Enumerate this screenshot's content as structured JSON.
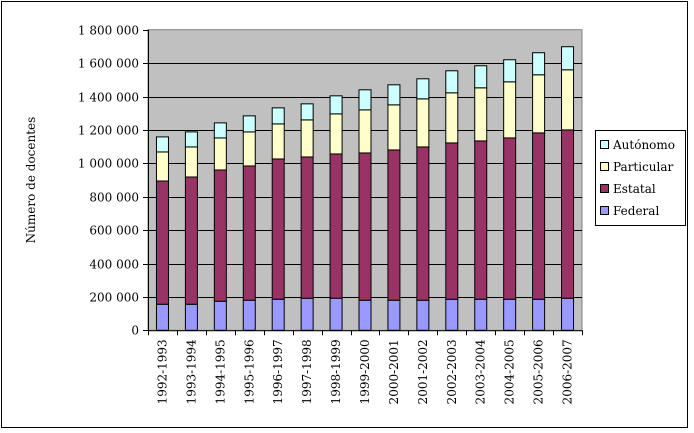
{
  "chart_data": {
    "type": "bar",
    "stacked": true,
    "title": "",
    "xlabel": "",
    "ylabel": "Número de docentes",
    "ylim": [
      0,
      1800000
    ],
    "yticks": [
      0,
      200000,
      400000,
      600000,
      800000,
      1000000,
      1200000,
      1400000,
      1600000,
      1800000
    ],
    "ytick_labels": [
      "0",
      "200 000",
      "400 000",
      "600 000",
      "800 000",
      "1 000 000",
      "1 200 000",
      "1 400 000",
      "1 600 000",
      "1 800 000"
    ],
    "grid": true,
    "legend_position": "right",
    "categories": [
      "1992-1993",
      "1993-1994",
      "1994-1995",
      "1995-1996",
      "1996-1997",
      "1997-1998",
      "1998-1999",
      "1999-2000",
      "2000-2001",
      "2001-2002",
      "2002-2003",
      "2003-2004",
      "2004-2005",
      "2005-2006",
      "2006-2007"
    ],
    "series": [
      {
        "name": "Federal",
        "color": "#9999ff",
        "values": [
          156000,
          156000,
          174000,
          180000,
          186000,
          192000,
          192000,
          180000,
          180000,
          180000,
          186000,
          186000,
          186000,
          186000,
          192000
        ]
      },
      {
        "name": "Estatal",
        "color": "#993366",
        "values": [
          738000,
          762000,
          786000,
          804000,
          840000,
          846000,
          864000,
          882000,
          900000,
          918000,
          936000,
          948000,
          966000,
          996000,
          1008000
        ]
      },
      {
        "name": "Particular",
        "color": "#ffffcc",
        "values": [
          174000,
          180000,
          192000,
          204000,
          210000,
          222000,
          240000,
          258000,
          270000,
          288000,
          300000,
          318000,
          336000,
          348000,
          360000
        ]
      },
      {
        "name": "Autónomo",
        "color": "#ccffff",
        "values": [
          90000,
          90000,
          90000,
          96000,
          96000,
          96000,
          108000,
          120000,
          120000,
          120000,
          132000,
          132000,
          132000,
          132000,
          138000
        ]
      }
    ],
    "legend_order": [
      "Autónomo",
      "Particular",
      "Estatal",
      "Federal"
    ],
    "plot_background": "#c0c0c0"
  }
}
